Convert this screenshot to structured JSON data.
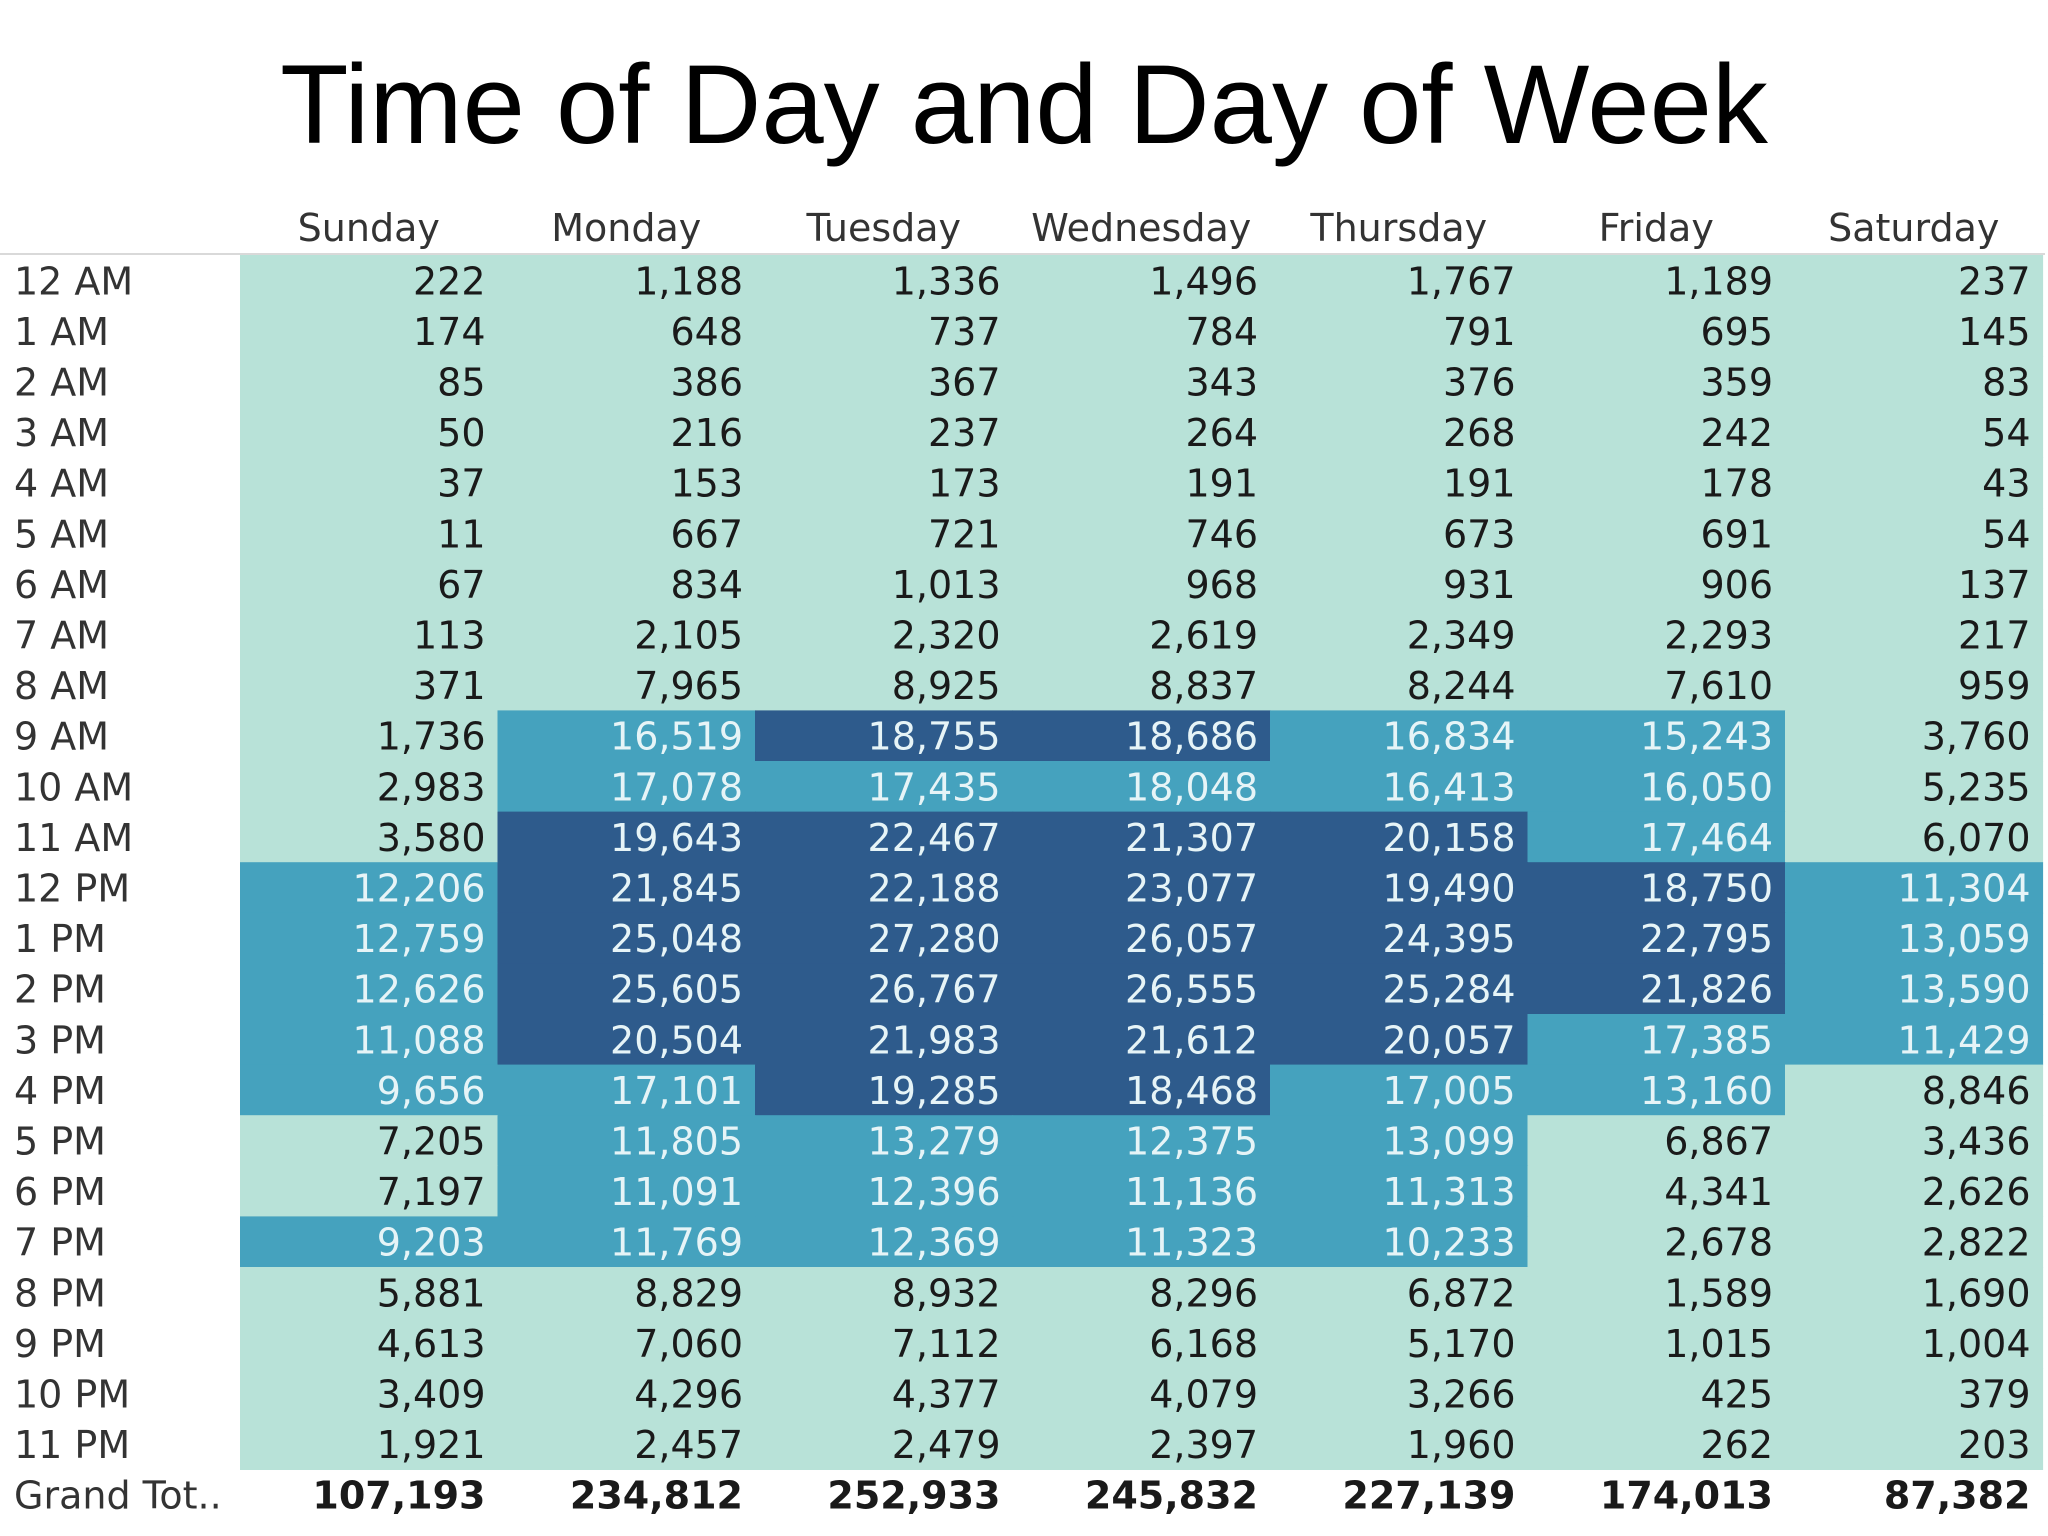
{
  "page": {
    "title": "Time of Day and Day of Week"
  },
  "colors": {
    "light": "#b8e2d8",
    "medium": "#45a2be",
    "dark": "#2e5b8c",
    "dark_text": "#1a1a1a",
    "label_text": "#333333",
    "light_text": "#e6f4f7",
    "border": "#d9d9d9"
  },
  "chart_data": {
    "type": "heatmap",
    "title": "Time of Day and Day of Week",
    "columns": [
      "Sunday",
      "Monday",
      "Tuesday",
      "Wednesday",
      "Thursday",
      "Friday",
      "Saturday"
    ],
    "rows": [
      "12 AM",
      "1 AM",
      "2 AM",
      "3 AM",
      "4 AM",
      "5 AM",
      "6 AM",
      "7 AM",
      "8 AM",
      "9 AM",
      "10 AM",
      "11 AM",
      "12 PM",
      "1 PM",
      "2 PM",
      "3 PM",
      "4 PM",
      "5 PM",
      "6 PM",
      "7 PM",
      "8 PM",
      "9 PM",
      "10 PM",
      "11 PM"
    ],
    "values": [
      [
        222,
        1188,
        1336,
        1496,
        1767,
        1189,
        237
      ],
      [
        174,
        648,
        737,
        784,
        791,
        695,
        145
      ],
      [
        85,
        386,
        367,
        343,
        376,
        359,
        83
      ],
      [
        50,
        216,
        237,
        264,
        268,
        242,
        54
      ],
      [
        37,
        153,
        173,
        191,
        191,
        178,
        43
      ],
      [
        11,
        667,
        721,
        746,
        673,
        691,
        54
      ],
      [
        67,
        834,
        1013,
        968,
        931,
        906,
        137
      ],
      [
        113,
        2105,
        2320,
        2619,
        2349,
        2293,
        217
      ],
      [
        371,
        7965,
        8925,
        8837,
        8244,
        7610,
        959
      ],
      [
        1736,
        16519,
        18755,
        18686,
        16834,
        15243,
        3760
      ],
      [
        2983,
        17078,
        17435,
        18048,
        16413,
        16050,
        5235
      ],
      [
        3580,
        19643,
        22467,
        21307,
        20158,
        17464,
        6070
      ],
      [
        12206,
        21845,
        22188,
        23077,
        19490,
        18750,
        11304
      ],
      [
        12759,
        25048,
        27280,
        26057,
        24395,
        22795,
        13059
      ],
      [
        12626,
        25605,
        26767,
        26555,
        25284,
        21826,
        13590
      ],
      [
        11088,
        20504,
        21983,
        21612,
        20057,
        17385,
        11429
      ],
      [
        9656,
        17101,
        19285,
        18468,
        17005,
        13160,
        8846
      ],
      [
        7205,
        11805,
        13279,
        12375,
        13099,
        6867,
        3436
      ],
      [
        7197,
        11091,
        12396,
        11136,
        11313,
        4341,
        2626
      ],
      [
        9203,
        11769,
        12369,
        11323,
        10233,
        2678,
        2822
      ],
      [
        5881,
        8829,
        8932,
        8296,
        6872,
        1589,
        1690
      ],
      [
        4613,
        7060,
        7112,
        6168,
        5170,
        1015,
        1004
      ],
      [
        3409,
        4296,
        4377,
        4079,
        3266,
        425,
        379
      ],
      [
        1921,
        2457,
        2479,
        2397,
        1960,
        262,
        203
      ]
    ],
    "shading": [
      "LLLLLLL",
      "LLLLLLL",
      "LLLLLLL",
      "LLLLLLL",
      "LLLLLLL",
      "LLLLLLL",
      "LLLLLLL",
      "LLLLLLL",
      "LLLLLLL",
      "LMDDMML",
      "LMMMMML",
      "LDDDDML",
      "MDDDDDM",
      "MDDDDDM",
      "MDDDDDM",
      "MDDDDMM",
      "MMDDMML",
      "LMMMMLL",
      "LMMMMLL",
      "MMMMMLL",
      "LLLLLLL",
      "LLLLLLL",
      "LLLLLLL",
      "LLLLLLL"
    ],
    "totals_label": "Grand Tot..",
    "totals": [
      107193,
      234812,
      252933,
      245832,
      227139,
      174013,
      87382
    ]
  }
}
